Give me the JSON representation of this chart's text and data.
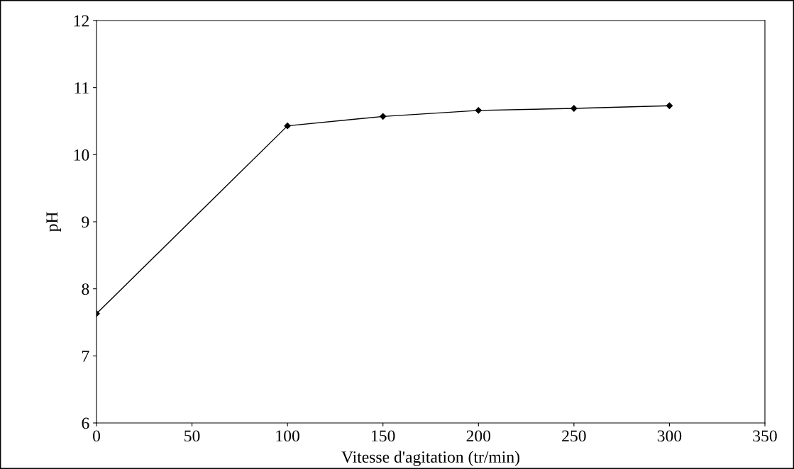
{
  "chart_data": {
    "type": "line",
    "xlabel": "Vitesse d'agitation (tr/min)",
    "ylabel": "pH",
    "x": [
      0,
      100,
      150,
      200,
      250,
      300
    ],
    "series": [
      {
        "color": "#000000",
        "values": [
          7.63,
          10.43,
          10.57,
          10.66,
          10.69,
          10.73
        ]
      }
    ],
    "xlim": [
      0,
      350
    ],
    "xticks": [
      0,
      50,
      100,
      150,
      200,
      250,
      300,
      350
    ],
    "ylim": [
      6,
      12
    ],
    "yticks": [
      6,
      7,
      8,
      9,
      10,
      11,
      12
    ],
    "marker": "diamond",
    "line_style": "solid"
  }
}
